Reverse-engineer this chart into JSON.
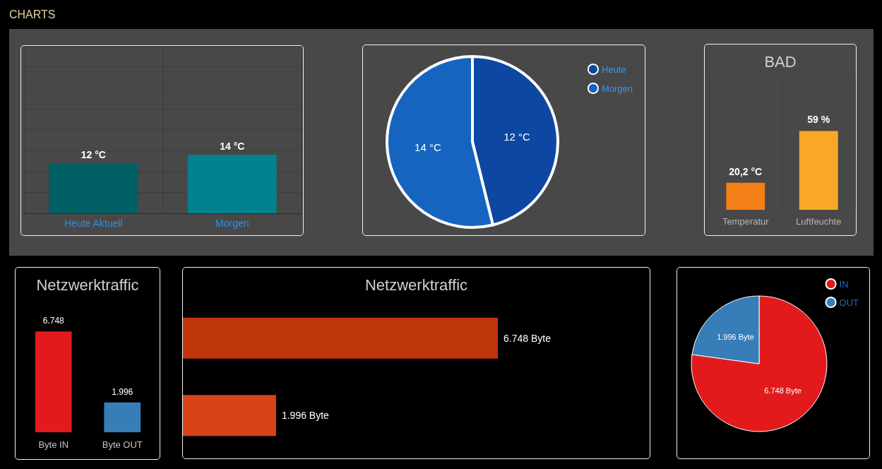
{
  "chart_data": [
    {
      "type": "other",
      "title": "CHARTS"
    },
    {
      "type": "bar",
      "categories": [
        "Heute Aktuell",
        "Morgen"
      ],
      "values": [
        12,
        14
      ],
      "value_labels": [
        "12 °C",
        "14 °C"
      ],
      "colors": [
        "#006064",
        "#00838f"
      ],
      "ylim": [
        0,
        40
      ],
      "yticks": [
        {
          "value": 0,
          "label": null
        },
        {
          "value": 5,
          "label": null
        },
        {
          "value": 10,
          "label": null
        },
        {
          "value": 15,
          "label": null
        },
        {
          "value": 20,
          "label": null
        },
        {
          "value": 25,
          "label": null
        },
        {
          "value": 30,
          "label": null
        },
        {
          "value": 35,
          "label": null
        },
        {
          "value": 40,
          "label": null
        }
      ],
      "grid": true,
      "tick_labels": "x"
    },
    {
      "type": "pie",
      "categories": [
        "Heute",
        "Morgen"
      ],
      "values": [
        12,
        14
      ],
      "value_labels": [
        "12 °C",
        "14 °C"
      ],
      "colors": [
        "#0d47a1",
        "#1565c0"
      ],
      "legend": "top right"
    },
    {
      "type": "bar",
      "title": "BAD",
      "categories": [
        "Temperatur",
        "Luftfeuchte"
      ],
      "values": [
        20.2,
        59
      ],
      "value_labels": [
        "20,2 °C",
        "59 %"
      ],
      "colors": [
        "#f57f17",
        "#f9a825"
      ],
      "ylim": [
        0,
        100
      ],
      "grid": "x",
      "tick_labels": "x"
    },
    {
      "type": "bar",
      "title": "Netzwerktraffic",
      "categories": [
        "Byte IN",
        "Byte OUT"
      ],
      "values": [
        6748,
        1996
      ],
      "value_labels": [
        "6.748",
        "1.996"
      ],
      "colors": [
        "#e31a1c",
        "#377eb8"
      ],
      "tick_labels": "x"
    },
    {
      "type": "bar",
      "title": "Netzwerktraffic",
      "orientation": "horizontal",
      "categories": [
        null,
        null
      ],
      "values": [
        6748,
        1996
      ],
      "value_labels": [
        "6.748 Byte",
        "1.996 Byte"
      ],
      "colors": [
        "#bf360c",
        "#d84315"
      ],
      "xlim": [
        0,
        10000
      ],
      "tick_labels": false
    },
    {
      "type": "pie",
      "categories": [
        "IN",
        "OUT"
      ],
      "values": [
        6748,
        1996
      ],
      "value_labels": [
        "6.748 Byte",
        "1.996 Byte"
      ],
      "colors": [
        "#e31a1c",
        "#377eb8"
      ],
      "legend": "top right"
    }
  ]
}
